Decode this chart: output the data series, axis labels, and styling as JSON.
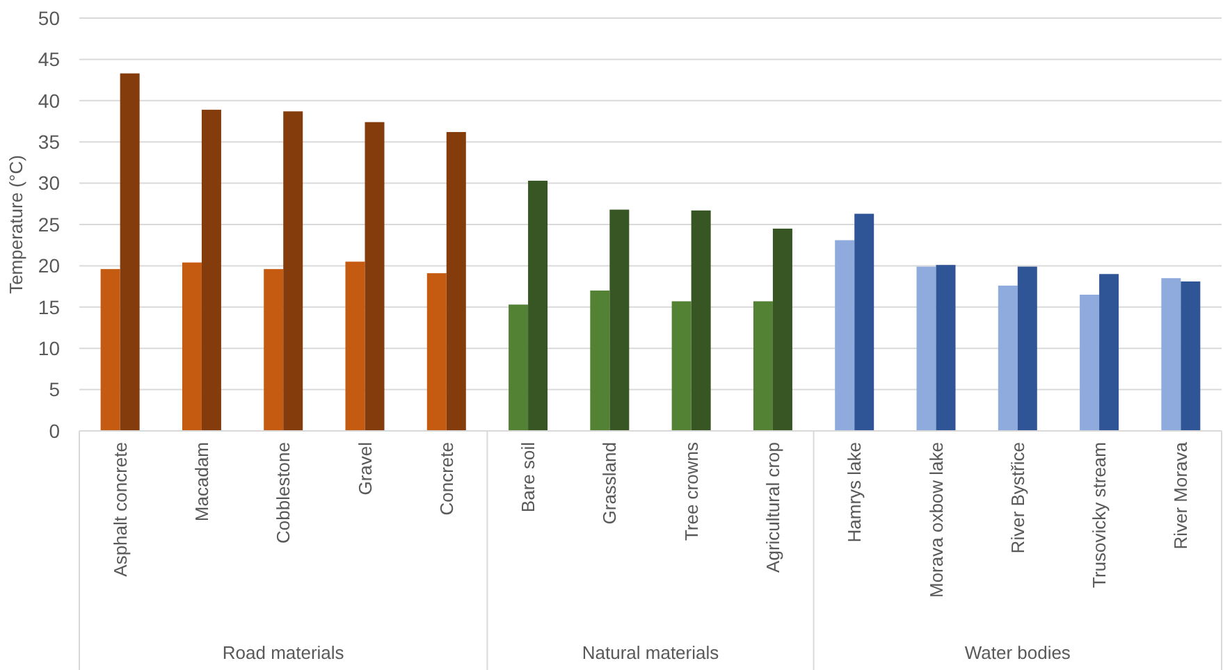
{
  "chart_data": {
    "type": "bar",
    "ylabel": "Temperature (°C)",
    "categories": [
      "Asphalt concrete",
      "Macadam",
      "Cobblestone",
      "Gravel",
      "Concrete",
      "Bare soil",
      "Grassland",
      "Tree crowns",
      "Agricultural crop",
      "Hamrys lake",
      "Morava oxbow lake",
      "River Bystřice",
      "Trusovicky stream",
      "River Morava"
    ],
    "series": [
      {
        "colors": [
          "#c55a11",
          "#c55a11",
          "#c55a11",
          "#c55a11",
          "#c55a11",
          "#548235",
          "#548235",
          "#548235",
          "#548235",
          "#8faadc",
          "#8faadc",
          "#8faadc",
          "#8faadc",
          "#8faadc"
        ],
        "values": [
          19.6,
          20.4,
          19.6,
          20.5,
          19.1,
          15.3,
          17.0,
          15.7,
          15.7,
          23.1,
          19.9,
          17.6,
          16.5,
          18.5
        ]
      },
      {
        "colors": [
          "#843c0c",
          "#843c0c",
          "#843c0c",
          "#843c0c",
          "#843c0c",
          "#375623",
          "#375623",
          "#375623",
          "#375623",
          "#2f5597",
          "#2f5597",
          "#2f5597",
          "#2f5597",
          "#2f5597"
        ],
        "values": [
          43.3,
          38.9,
          38.7,
          37.4,
          36.2,
          30.3,
          26.8,
          26.7,
          24.5,
          26.3,
          20.1,
          19.9,
          19.0,
          18.1
        ]
      }
    ],
    "annotations": [
      "Road materials",
      "Natural materials",
      "Water bodies"
    ],
    "ylim": [
      0,
      50
    ],
    "yticks": [
      0,
      5,
      10,
      15,
      20,
      25,
      30,
      35,
      40,
      45,
      50
    ],
    "grid": "y"
  }
}
